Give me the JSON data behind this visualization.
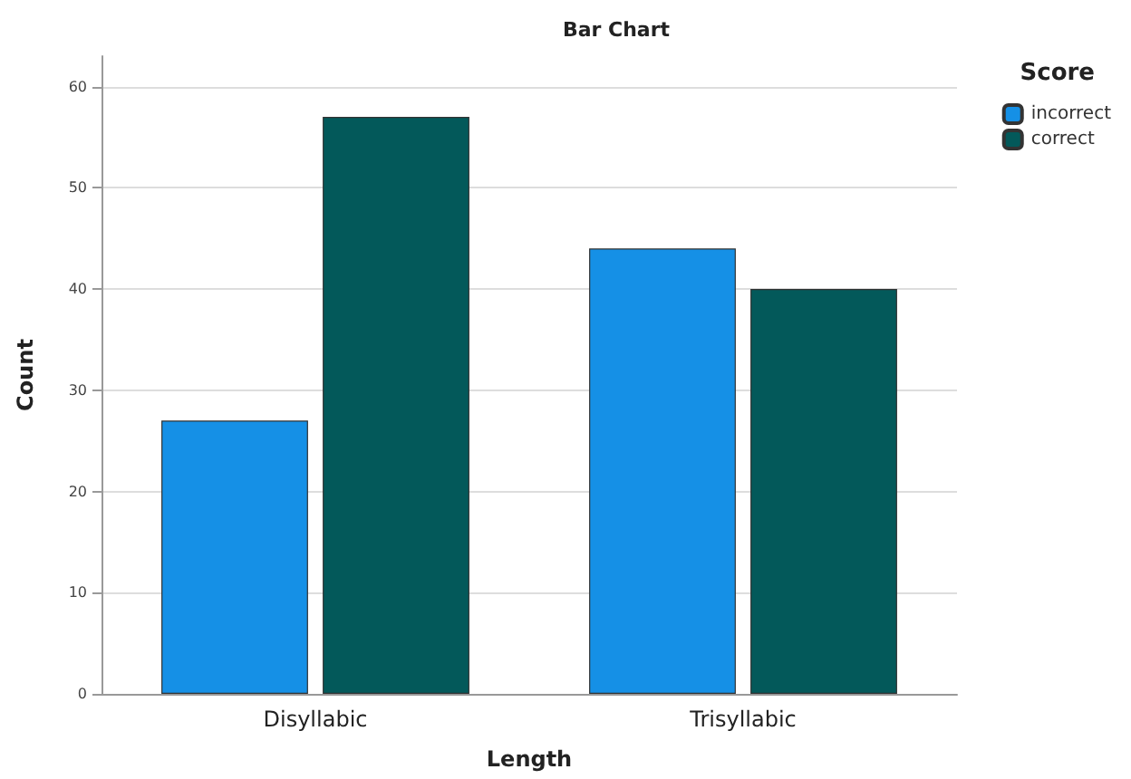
{
  "chart_data": {
    "type": "bar",
    "title": "Bar Chart",
    "xlabel": "Length",
    "ylabel": "Count",
    "legend_title": "Score",
    "categories": [
      "Disyllabic",
      "Trisyllabic"
    ],
    "series": [
      {
        "name": "incorrect",
        "color": "#1590e6",
        "values": [
          27,
          44
        ]
      },
      {
        "name": "correct",
        "color": "#03595a",
        "values": [
          57,
          40
        ]
      }
    ],
    "ylim": [
      0,
      63
    ],
    "yticks": [
      0,
      10,
      20,
      30,
      40,
      50,
      60
    ],
    "grid": "y",
    "legend": "top right"
  }
}
